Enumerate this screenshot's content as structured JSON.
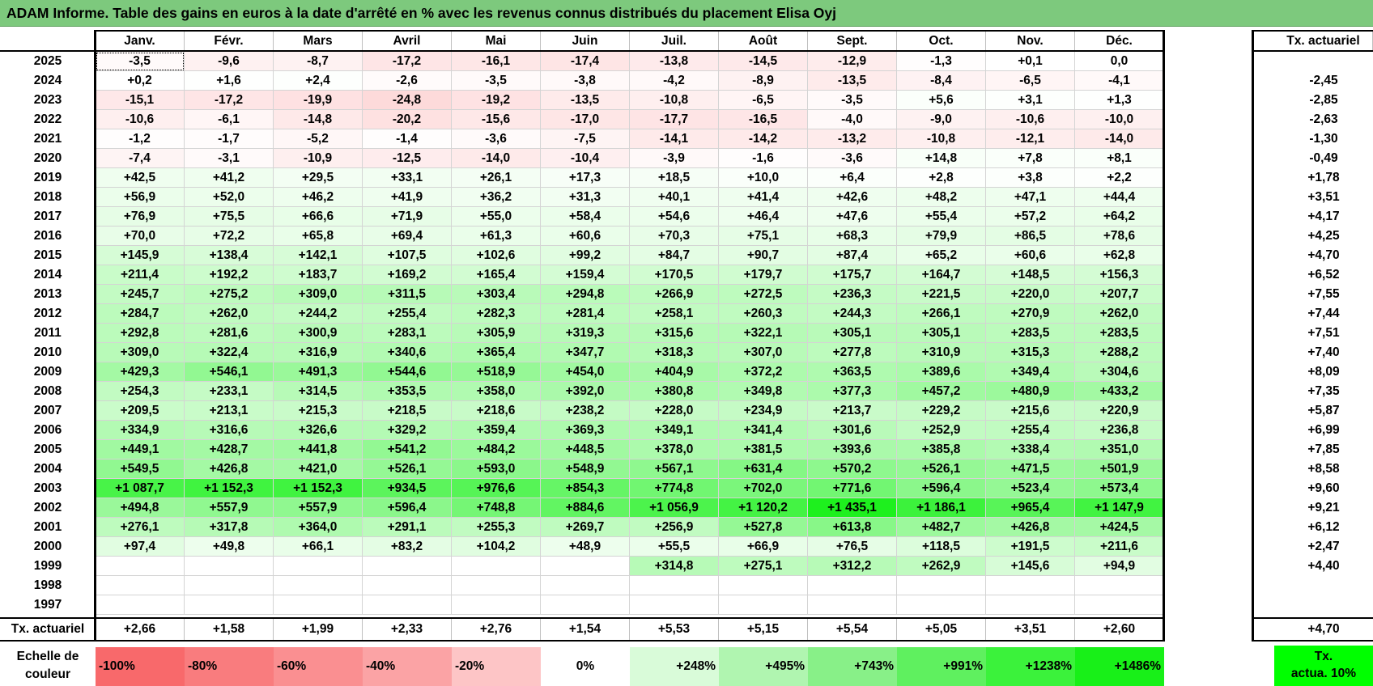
{
  "title": "ADAM Informe. Table des gains en euros à la date d'arrêté en % avec les revenus connus distribués du placement Elisa Oyj",
  "months": [
    "Janv.",
    "Févr.",
    "Mars",
    "Avril",
    "Mai",
    "Juin",
    "Juil.",
    "Août",
    "Sept.",
    "Oct.",
    "Nov.",
    "Déc."
  ],
  "rate_header": "Tx. actuariel",
  "rows": [
    {
      "year": "2025",
      "values": [
        "-3,5",
        "-9,6",
        "-8,7",
        "-17,2",
        "-16,1",
        "-17,4",
        "-13,8",
        "-14,5",
        "-12,9",
        "-1,3",
        "+0,1",
        "0,0"
      ],
      "rate": ""
    },
    {
      "year": "2024",
      "values": [
        "+0,2",
        "+1,6",
        "+2,4",
        "-2,6",
        "-3,5",
        "-3,8",
        "-4,2",
        "-8,9",
        "-13,5",
        "-8,4",
        "-6,5",
        "-4,1"
      ],
      "rate": "-2,45"
    },
    {
      "year": "2023",
      "values": [
        "-15,1",
        "-17,2",
        "-19,9",
        "-24,8",
        "-19,2",
        "-13,5",
        "-10,8",
        "-6,5",
        "-3,5",
        "+5,6",
        "+3,1",
        "+1,3"
      ],
      "rate": "-2,85"
    },
    {
      "year": "2022",
      "values": [
        "-10,6",
        "-6,1",
        "-14,8",
        "-20,2",
        "-15,6",
        "-17,0",
        "-17,7",
        "-16,5",
        "-4,0",
        "-9,0",
        "-10,6",
        "-10,0"
      ],
      "rate": "-2,63"
    },
    {
      "year": "2021",
      "values": [
        "-1,2",
        "-1,7",
        "-5,2",
        "-1,4",
        "-3,6",
        "-7,5",
        "-14,1",
        "-14,2",
        "-13,2",
        "-10,8",
        "-12,1",
        "-14,0"
      ],
      "rate": "-1,30"
    },
    {
      "year": "2020",
      "values": [
        "-7,4",
        "-3,1",
        "-10,9",
        "-12,5",
        "-14,0",
        "-10,4",
        "-3,9",
        "-1,6",
        "-3,6",
        "+14,8",
        "+7,8",
        "+8,1"
      ],
      "rate": "-0,49"
    },
    {
      "year": "2019",
      "values": [
        "+42,5",
        "+41,2",
        "+29,5",
        "+33,1",
        "+26,1",
        "+17,3",
        "+18,5",
        "+10,0",
        "+6,4",
        "+2,8",
        "+3,8",
        "+2,2"
      ],
      "rate": "+1,78"
    },
    {
      "year": "2018",
      "values": [
        "+56,9",
        "+52,0",
        "+46,2",
        "+41,9",
        "+36,2",
        "+31,3",
        "+40,1",
        "+41,4",
        "+42,6",
        "+48,2",
        "+47,1",
        "+44,4"
      ],
      "rate": "+3,51"
    },
    {
      "year": "2017",
      "values": [
        "+76,9",
        "+75,5",
        "+66,6",
        "+71,9",
        "+55,0",
        "+58,4",
        "+54,6",
        "+46,4",
        "+47,6",
        "+55,4",
        "+57,2",
        "+64,2"
      ],
      "rate": "+4,17"
    },
    {
      "year": "2016",
      "values": [
        "+70,0",
        "+72,2",
        "+65,8",
        "+69,4",
        "+61,3",
        "+60,6",
        "+70,3",
        "+75,1",
        "+68,3",
        "+79,9",
        "+86,5",
        "+78,6"
      ],
      "rate": "+4,25"
    },
    {
      "year": "2015",
      "values": [
        "+145,9",
        "+138,4",
        "+142,1",
        "+107,5",
        "+102,6",
        "+99,2",
        "+84,7",
        "+90,7",
        "+87,4",
        "+65,2",
        "+60,6",
        "+62,8"
      ],
      "rate": "+4,70"
    },
    {
      "year": "2014",
      "values": [
        "+211,4",
        "+192,2",
        "+183,7",
        "+169,2",
        "+165,4",
        "+159,4",
        "+170,5",
        "+179,7",
        "+175,7",
        "+164,7",
        "+148,5",
        "+156,3"
      ],
      "rate": "+6,52"
    },
    {
      "year": "2013",
      "values": [
        "+245,7",
        "+275,2",
        "+309,0",
        "+311,5",
        "+303,4",
        "+294,8",
        "+266,9",
        "+272,5",
        "+236,3",
        "+221,5",
        "+220,0",
        "+207,7"
      ],
      "rate": "+7,55"
    },
    {
      "year": "2012",
      "values": [
        "+284,7",
        "+262,0",
        "+244,2",
        "+255,4",
        "+282,3",
        "+281,4",
        "+258,1",
        "+260,3",
        "+244,3",
        "+266,1",
        "+270,9",
        "+262,0"
      ],
      "rate": "+7,44"
    },
    {
      "year": "2011",
      "values": [
        "+292,8",
        "+281,6",
        "+300,9",
        "+283,1",
        "+305,9",
        "+319,3",
        "+315,6",
        "+322,1",
        "+305,1",
        "+305,1",
        "+283,5",
        "+283,5"
      ],
      "rate": "+7,51"
    },
    {
      "year": "2010",
      "values": [
        "+309,0",
        "+322,4",
        "+316,9",
        "+340,6",
        "+365,4",
        "+347,7",
        "+318,3",
        "+307,0",
        "+277,8",
        "+310,9",
        "+315,3",
        "+288,2"
      ],
      "rate": "+7,40"
    },
    {
      "year": "2009",
      "values": [
        "+429,3",
        "+546,1",
        "+491,3",
        "+544,6",
        "+518,9",
        "+454,0",
        "+404,9",
        "+372,2",
        "+363,5",
        "+389,6",
        "+349,4",
        "+304,6"
      ],
      "rate": "+8,09"
    },
    {
      "year": "2008",
      "values": [
        "+254,3",
        "+233,1",
        "+314,5",
        "+353,5",
        "+358,0",
        "+392,0",
        "+380,8",
        "+349,8",
        "+377,3",
        "+457,2",
        "+480,9",
        "+433,2"
      ],
      "rate": "+7,35"
    },
    {
      "year": "2007",
      "values": [
        "+209,5",
        "+213,1",
        "+215,3",
        "+218,5",
        "+218,6",
        "+238,2",
        "+228,0",
        "+234,9",
        "+213,7",
        "+229,2",
        "+215,6",
        "+220,9"
      ],
      "rate": "+5,87"
    },
    {
      "year": "2006",
      "values": [
        "+334,9",
        "+316,6",
        "+326,6",
        "+329,2",
        "+359,4",
        "+369,3",
        "+349,1",
        "+341,4",
        "+301,6",
        "+252,9",
        "+255,4",
        "+236,8"
      ],
      "rate": "+6,99"
    },
    {
      "year": "2005",
      "values": [
        "+449,1",
        "+428,7",
        "+441,8",
        "+541,2",
        "+484,2",
        "+448,5",
        "+378,0",
        "+381,5",
        "+393,6",
        "+385,8",
        "+338,4",
        "+351,0"
      ],
      "rate": "+7,85"
    },
    {
      "year": "2004",
      "values": [
        "+549,5",
        "+426,8",
        "+421,0",
        "+526,1",
        "+593,0",
        "+548,9",
        "+567,1",
        "+631,4",
        "+570,2",
        "+526,1",
        "+471,5",
        "+501,9"
      ],
      "rate": "+8,58"
    },
    {
      "year": "2003",
      "values": [
        "+1 087,7",
        "+1 152,3",
        "+1 152,3",
        "+934,5",
        "+976,6",
        "+854,3",
        "+774,8",
        "+702,0",
        "+771,6",
        "+596,4",
        "+523,4",
        "+573,4"
      ],
      "rate": "+9,60"
    },
    {
      "year": "2002",
      "values": [
        "+494,8",
        "+557,9",
        "+557,9",
        "+596,4",
        "+748,8",
        "+884,6",
        "+1 056,9",
        "+1 120,2",
        "+1 435,1",
        "+1 186,1",
        "+965,4",
        "+1 147,9"
      ],
      "rate": "+9,21"
    },
    {
      "year": "2001",
      "values": [
        "+276,1",
        "+317,8",
        "+364,0",
        "+291,1",
        "+255,3",
        "+269,7",
        "+256,9",
        "+527,8",
        "+613,8",
        "+482,7",
        "+426,8",
        "+424,5"
      ],
      "rate": "+6,12"
    },
    {
      "year": "2000",
      "values": [
        "+97,4",
        "+49,8",
        "+66,1",
        "+83,2",
        "+104,2",
        "+48,9",
        "+55,5",
        "+66,9",
        "+76,5",
        "+118,5",
        "+191,5",
        "+211,6"
      ],
      "rate": "+2,47"
    },
    {
      "year": "1999",
      "values": [
        "",
        "",
        "",
        "",
        "",
        "",
        "+314,8",
        "+275,1",
        "+312,2",
        "+262,9",
        "+145,6",
        "+94,9"
      ],
      "rate": "+4,40"
    },
    {
      "year": "1998",
      "values": [
        "",
        "",
        "",
        "",
        "",
        "",
        "",
        "",
        "",
        "",
        "",
        ""
      ],
      "rate": ""
    },
    {
      "year": "1997",
      "values": [
        "",
        "",
        "",
        "",
        "",
        "",
        "",
        "",
        "",
        "",
        "",
        ""
      ],
      "rate": ""
    }
  ],
  "footer": {
    "label": "Tx. actuariel",
    "values": [
      "+2,66",
      "+1,58",
      "+1,99",
      "+2,33",
      "+2,76",
      "+1,54",
      "+5,53",
      "+5,15",
      "+5,54",
      "+5,05",
      "+3,51",
      "+2,60"
    ],
    "rate": "+4,70"
  },
  "scale": {
    "label_line1": "Echelle de",
    "label_line2": "couleur",
    "items": [
      "-100%",
      "-80%",
      "-60%",
      "-40%",
      "-20%",
      "0%",
      "+248%",
      "+495%",
      "+743%",
      "+991%",
      "+1238%",
      "+1486%"
    ],
    "colors": [
      "#f8696b",
      "#f97c7e",
      "#fa8f91",
      "#fba3a5",
      "#fdc5c6",
      "#ffffff",
      "#d9fbd9",
      "#b0f5b0",
      "#88f088",
      "#5ff05f",
      "#3bf23b",
      "#18f018"
    ],
    "key_line1": "Tx.",
    "key_line2": "actua. 10%",
    "key_color": "#00ff00"
  }
}
